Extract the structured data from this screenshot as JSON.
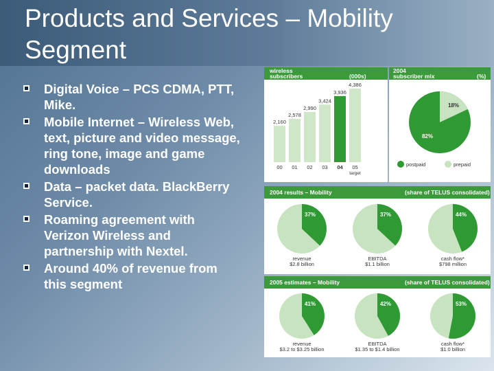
{
  "slide": {
    "title_line1": "Products and Services – Mobility",
    "title_line2": "Segment",
    "bullets": [
      "Digital Voice – PCS CDMA, PTT, Mike.",
      "Mobile Internet – Wireless Web, text, picture and video message, ring tone, image and game downloads",
      "Data – packet data. BlackBerry Service.",
      "Roaming agreement with Verizon Wireless and partnership with Nextel.",
      "Around 40% of revenue from this segment"
    ],
    "bullet_glyph": "n"
  },
  "colors": {
    "accent_green": "#3c9a3a",
    "light_green": "#c7e3c0",
    "bar_dark": "#2f9a34",
    "bar_light": "#cfe6c8"
  },
  "chart_data": [
    {
      "type": "bar",
      "title_line1": "wireless",
      "title_line2": "subscribers",
      "unit": "(000s)",
      "categories": [
        "00",
        "01",
        "02",
        "03",
        "04",
        "05"
      ],
      "category_note": "target",
      "values": [
        2160,
        2578,
        2990,
        3424,
        3936,
        4386
      ],
      "value_labels": [
        "2,160",
        "2,578",
        "2,990",
        "3,424",
        "3,936",
        "4,386"
      ],
      "highlight_index": 4
    },
    {
      "type": "pie",
      "title_line1": "2004",
      "title_line2": "subscriber mix",
      "unit": "(%)",
      "slices": [
        {
          "name": "postpaid",
          "value": 82,
          "label": "82%"
        },
        {
          "name": "prepaid",
          "value": 18,
          "label": "18%"
        }
      ]
    },
    {
      "type": "pie",
      "group_title": "2004 results – Mobility",
      "group_note": "(share of TELUS consolidated)",
      "pies": [
        {
          "label": "37%",
          "value": 37,
          "name": "revenue",
          "amount": "$2.8 billion"
        },
        {
          "label": "37%",
          "value": 37,
          "name": "EBITDA",
          "amount": "$1.1 billion"
        },
        {
          "label": "44%",
          "value": 44,
          "name": "cash flow*",
          "amount": "$798 million"
        }
      ]
    },
    {
      "type": "pie",
      "group_title": "2005 estimates – Mobility",
      "group_note": "(share of TELUS consolidated)",
      "pies": [
        {
          "label": "41%",
          "value": 41,
          "name": "revenue",
          "amount": "$3.2 to $3.25 billion"
        },
        {
          "label": "42%",
          "value": 42,
          "name": "EBITDA",
          "amount": "$1.35 to $1.4 billion"
        },
        {
          "label": "53%",
          "value": 53,
          "name": "cash flow*",
          "amount": "$1.0 billion"
        }
      ]
    }
  ]
}
